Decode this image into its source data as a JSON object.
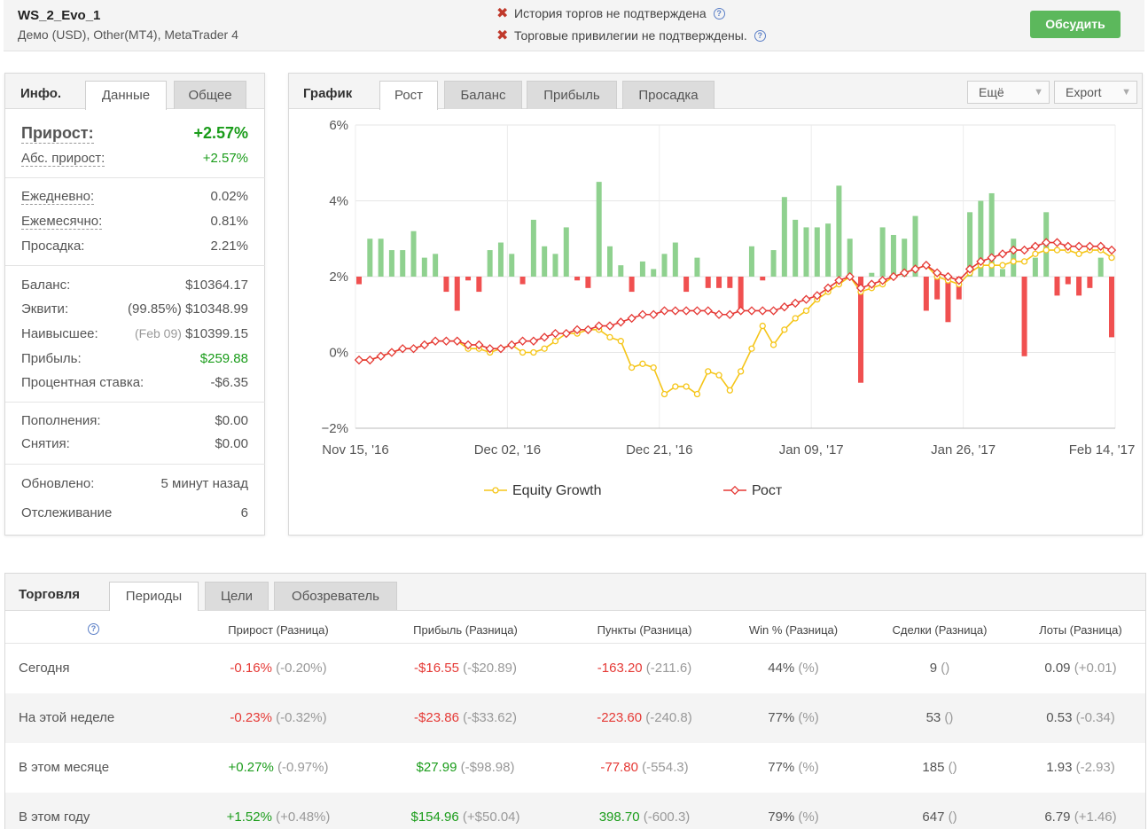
{
  "header": {
    "account_name": "WS_2_Evo_1",
    "account_sub": "Демо (USD), Other(MT4), MetaTrader 4",
    "warning_1": "История торгов не подтверждена",
    "warning_2": "Торговые привилегии не подтверждены.",
    "discuss_label": "Обсудить"
  },
  "info": {
    "tab_title": "Инфо.",
    "tabs": [
      "Данные",
      "Общее"
    ],
    "gain_label": "Прирост:",
    "gain_value": "+2.57%",
    "abs_gain_label": "Абс. прирост:",
    "abs_gain_value": "+2.57%",
    "daily_label": "Ежедневно:",
    "daily_value": "0.02%",
    "monthly_label": "Ежемесячно:",
    "monthly_value": "0.81%",
    "drawdown_label": "Просадка:",
    "drawdown_value": "2.21%",
    "balance_label": "Баланс:",
    "balance_value": "$10364.17",
    "equity_label": "Эквити:",
    "equity_pct": "(99.85%)",
    "equity_value": "$10348.99",
    "highest_label": "Наивысшее:",
    "highest_date": "(Feb 09)",
    "highest_value": "$10399.15",
    "profit_label": "Прибыль:",
    "profit_value": "$259.88",
    "interest_label": "Процентная ставка:",
    "interest_value": "-$6.35",
    "deposits_label": "Пополнения:",
    "deposits_value": "$0.00",
    "withdrawals_label": "Снятия:",
    "withdrawals_value": "$0.00",
    "updated_label": "Обновлено:",
    "updated_value": "5 минут назад",
    "tracking_label": "Отслеживание",
    "tracking_value": "6"
  },
  "chart_panel": {
    "tab_title": "График",
    "tabs": [
      "Рост",
      "Баланс",
      "Прибыль",
      "Просадка"
    ],
    "more_label": "Ещё",
    "export_label": "Export"
  },
  "chart_data": {
    "type": "line",
    "title": "",
    "ylim": [
      -2,
      6
    ],
    "y_ticks": [
      "6%",
      "4%",
      "2%",
      "0%",
      "−2%"
    ],
    "x_ticks": [
      "Nov 15, '16",
      "Dec 02, '16",
      "Dec 21, '16",
      "Jan 09, '17",
      "Jan 26, '17",
      "Feb 14, '17"
    ],
    "legend_position": "bottom",
    "colors": {
      "equity": "#f5c518",
      "growth": "#e53935",
      "bar_up": "#8fd18f",
      "bar_down": "#f05050"
    },
    "series": [
      {
        "name": "Equity Growth",
        "values": [
          -0.2,
          -0.2,
          -0.1,
          0,
          0.1,
          0.1,
          0.2,
          0.3,
          0.3,
          0.3,
          0.1,
          0.1,
          0,
          0.1,
          0.2,
          0,
          0,
          0.1,
          0.3,
          0.5,
          0.5,
          0.6,
          0.6,
          0.4,
          0.3,
          -0.4,
          -0.3,
          -0.4,
          -1.1,
          -0.9,
          -0.9,
          -1.1,
          -0.5,
          -0.6,
          -1,
          -0.5,
          0.1,
          0.7,
          0.2,
          0.6,
          0.9,
          1.1,
          1.4,
          1.6,
          1.8,
          2,
          1.6,
          1.7,
          1.8,
          2,
          2.1,
          2.2,
          2.3,
          2,
          1.9,
          1.8,
          2.1,
          2.3,
          2.3,
          2.3,
          2.4,
          2.4,
          2.6,
          2.7,
          2.7,
          2.7,
          2.6,
          2.7,
          2.7,
          2.5
        ]
      },
      {
        "name": "Рост",
        "values": [
          -0.2,
          -0.2,
          -0.1,
          0,
          0.1,
          0.1,
          0.2,
          0.3,
          0.3,
          0.3,
          0.2,
          0.2,
          0.1,
          0.1,
          0.2,
          0.3,
          0.3,
          0.4,
          0.5,
          0.5,
          0.6,
          0.6,
          0.7,
          0.7,
          0.8,
          0.9,
          1,
          1,
          1.1,
          1.1,
          1.1,
          1.1,
          1.1,
          1,
          1,
          1.1,
          1.1,
          1.1,
          1.1,
          1.2,
          1.3,
          1.4,
          1.5,
          1.7,
          1.9,
          2,
          1.7,
          1.8,
          1.9,
          2,
          2.1,
          2.2,
          2.3,
          2.1,
          2,
          1.9,
          2.2,
          2.4,
          2.5,
          2.6,
          2.7,
          2.7,
          2.8,
          2.9,
          2.9,
          2.8,
          2.8,
          2.8,
          2.8,
          2.7
        ]
      },
      {
        "name": "bars",
        "values": [
          -0.2,
          1,
          1,
          0.7,
          0.7,
          1.2,
          0.5,
          0.6,
          -0.4,
          -0.9,
          -0.1,
          -0.4,
          0.7,
          0.9,
          0.6,
          -0.2,
          1.5,
          0.8,
          0.6,
          1.3,
          -0.1,
          -0.3,
          2.5,
          0.8,
          0.3,
          -0.4,
          0.4,
          0.2,
          0.6,
          0.9,
          -0.4,
          0.5,
          -0.3,
          -0.3,
          -0.3,
          -0.9,
          0.8,
          -0.1,
          0.7,
          2.1,
          1.5,
          1.3,
          1.3,
          1.4,
          2.4,
          1,
          -2.8,
          0.1,
          1.3,
          1.1,
          1,
          1.6,
          -0.9,
          -0.6,
          -1.2,
          -0.6,
          1.7,
          2,
          2.2,
          0.2,
          1,
          -2.1,
          0.5,
          1.7,
          -0.5,
          -0.2,
          -0.5,
          -0.3,
          0.5,
          -1.6
        ]
      }
    ]
  },
  "trading": {
    "tab_title": "Торговля",
    "tabs": [
      "Периоды",
      "Цели",
      "Обозреватель"
    ],
    "headers": [
      "Прирост (Разница)",
      "Прибыль (Разница)",
      "Пункты (Разница)",
      "Win % (Разница)",
      "Сделки (Разница)",
      "Лоты (Разница)"
    ],
    "rows": [
      {
        "label": "Сегодня",
        "gain": "-0.16%",
        "gain_diff": "(-0.20%)",
        "profit": "-$16.55",
        "profit_diff": "(-$20.89)",
        "pips": "-163.20",
        "pips_diff": "(-211.6)",
        "win": "44%",
        "win_diff": "(%)",
        "trades": "9",
        "trades_diff": "()",
        "lots": "0.09",
        "lots_diff": "(+0.01)",
        "gain_color": "#e53935",
        "profit_color": "#e53935",
        "pips_color": "#e53935"
      },
      {
        "label": "На этой неделе",
        "gain": "-0.23%",
        "gain_diff": "(-0.32%)",
        "profit": "-$23.86",
        "profit_diff": "(-$33.62)",
        "pips": "-223.60",
        "pips_diff": "(-240.8)",
        "win": "77%",
        "win_diff": "(%)",
        "trades": "53",
        "trades_diff": "()",
        "lots": "0.53",
        "lots_diff": "(-0.34)",
        "gain_color": "#e53935",
        "profit_color": "#e53935",
        "pips_color": "#e53935"
      },
      {
        "label": "В этом месяце",
        "gain": "+0.27%",
        "gain_diff": "(-0.97%)",
        "profit": "$27.99",
        "profit_diff": "(-$98.98)",
        "pips": "-77.80",
        "pips_diff": "(-554.3)",
        "win": "77%",
        "win_diff": "(%)",
        "trades": "185",
        "trades_diff": "()",
        "lots": "1.93",
        "lots_diff": "(-2.93)",
        "gain_color": "#1a9c1a",
        "profit_color": "#1a9c1a",
        "pips_color": "#e53935"
      },
      {
        "label": "В этом году",
        "gain": "+1.52%",
        "gain_diff": "(+0.48%)",
        "profit": "$154.96",
        "profit_diff": "(+$50.04)",
        "pips": "398.70",
        "pips_diff": "(-600.3)",
        "win": "79%",
        "win_diff": "(%)",
        "trades": "647",
        "trades_diff": "()",
        "lots": "6.79",
        "lots_diff": "(+1.46)",
        "gain_color": "#1a9c1a",
        "profit_color": "#1a9c1a",
        "pips_color": "#1a9c1a"
      }
    ]
  }
}
